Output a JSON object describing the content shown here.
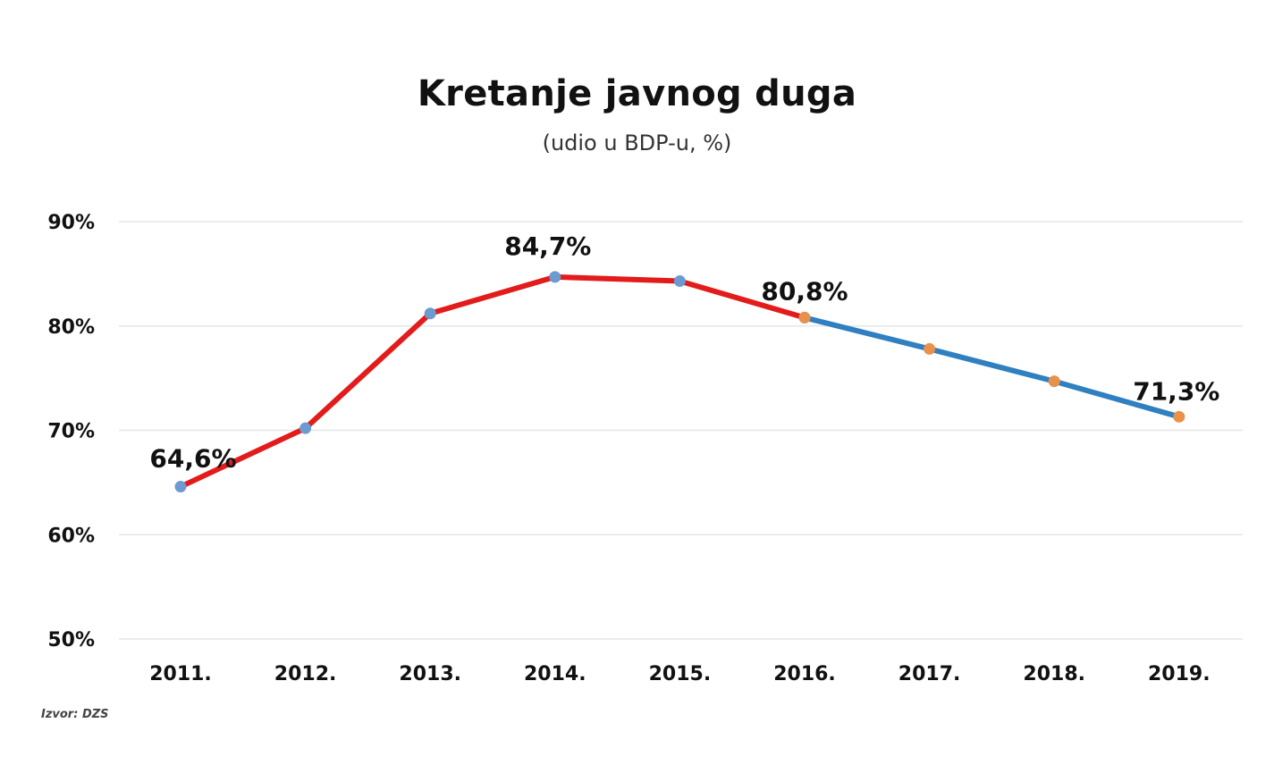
{
  "chart_data": {
    "type": "line",
    "title": "Kretanje javnog duga",
    "subtitle": "(udio u BDP-u, %)",
    "categories": [
      "2011.",
      "2012.",
      "2013.",
      "2014.",
      "2015.",
      "2016.",
      "2017.",
      "2018.",
      "2019."
    ],
    "values": [
      64.6,
      70.2,
      81.2,
      84.7,
      84.3,
      80.8,
      77.8,
      74.7,
      71.3
    ],
    "series": [
      {
        "values": [
          64.6,
          70.2,
          81.2,
          84.7,
          84.3,
          80.8,
          null,
          null,
          null
        ],
        "color": "#e31b1b",
        "marker_color": "#6b9bd1"
      },
      {
        "values": [
          null,
          null,
          null,
          null,
          null,
          80.8,
          77.8,
          74.7,
          71.3
        ],
        "color": "#2f7fc1",
        "marker_color": "#e8914a"
      }
    ],
    "ylim": [
      50,
      90
    ],
    "y_ticks": [
      "50%",
      "60%",
      "70%",
      "80%",
      "90%"
    ],
    "y_tick_values": [
      50,
      60,
      70,
      80,
      90
    ],
    "grid": true,
    "annotations": [
      {
        "index": 0,
        "text": "64,6%"
      },
      {
        "index": 3,
        "text": "84,7%"
      },
      {
        "index": 5,
        "text": "80,8%"
      },
      {
        "index": 8,
        "text": "71,3%"
      }
    ],
    "source": "Izvor: DZS"
  }
}
